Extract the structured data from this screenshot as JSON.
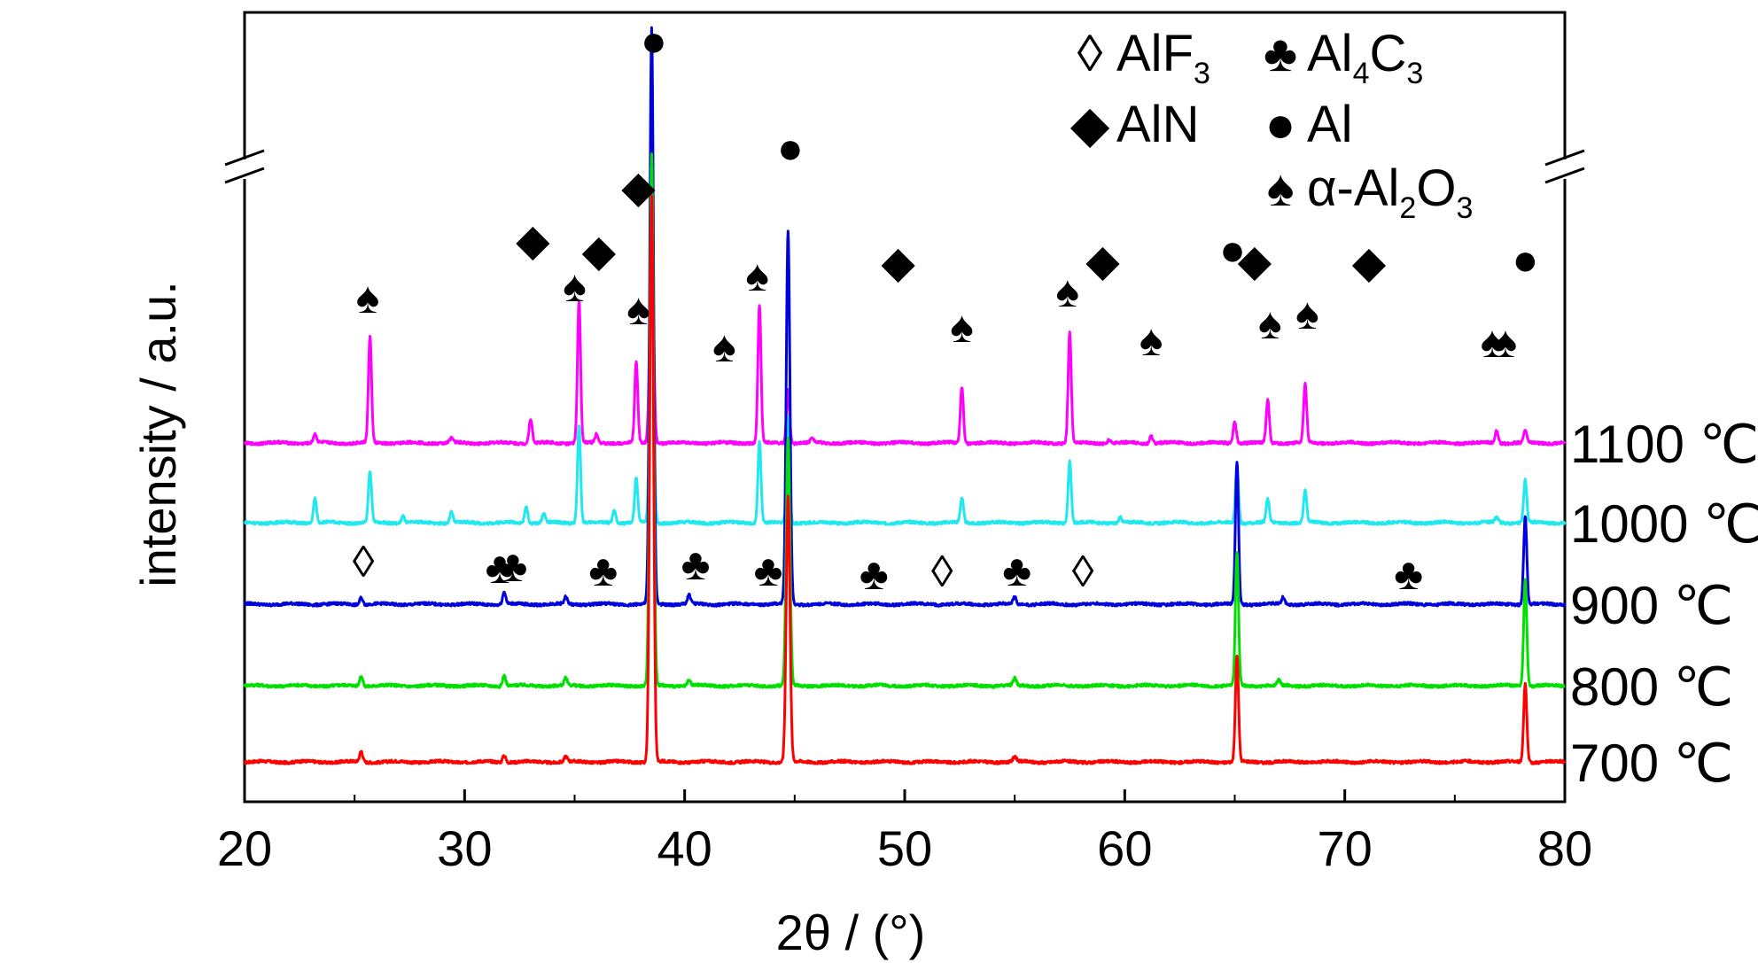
{
  "chart_data": {
    "type": "line",
    "xlabel": "2θ / (°)",
    "ylabel": "intensity / a.u.",
    "xlim": [
      20,
      80
    ],
    "xticks": [
      20,
      30,
      40,
      50,
      60,
      70,
      80
    ],
    "y_axis_break": true,
    "legend_position": "top-right",
    "legend": [
      {
        "symbol": "◊",
        "label": "AlF",
        "subscript": "3",
        "symbol_name": "open-diamond"
      },
      {
        "symbol": "♣",
        "label": "Al",
        "subscript": "4",
        "label2": "C",
        "subscript2": "3",
        "symbol_name": "club"
      },
      {
        "symbol": "◆",
        "label": "AlN",
        "subscript": "",
        "symbol_name": "filled-diamond"
      },
      {
        "symbol": "●",
        "label": "Al",
        "subscript": "",
        "symbol_name": "filled-circle"
      },
      {
        "symbol": "♠",
        "label": "α-Al",
        "subscript": "2",
        "label2": "O",
        "subscript2": "3",
        "symbol_name": "spade"
      }
    ],
    "series": [
      {
        "label": "700 ℃",
        "color": "#ff0000",
        "offset": 0,
        "peaks": [
          [
            25.3,
            12
          ],
          [
            31.8,
            8
          ],
          [
            34.6,
            6
          ],
          [
            38.5,
            640
          ],
          [
            44.7,
            300
          ],
          [
            55.0,
            6
          ],
          [
            65.1,
            120
          ],
          [
            78.2,
            90
          ]
        ]
      },
      {
        "label": "800 ℃",
        "color": "#00e000",
        "offset": 86,
        "peaks": [
          [
            25.3,
            12
          ],
          [
            31.8,
            12
          ],
          [
            34.6,
            8
          ],
          [
            38.5,
            600
          ],
          [
            40.2,
            6
          ],
          [
            44.7,
            280
          ],
          [
            55.0,
            8
          ],
          [
            65.1,
            150
          ],
          [
            67.0,
            6
          ],
          [
            78.2,
            120
          ]
        ]
      },
      {
        "label": "900 ℃",
        "color": "#0000dd",
        "offset": 178,
        "peaks": [
          [
            25.3,
            8
          ],
          [
            31.8,
            14
          ],
          [
            34.6,
            8
          ],
          [
            38.5,
            650
          ],
          [
            40.2,
            10
          ],
          [
            44.7,
            420
          ],
          [
            55.0,
            8
          ],
          [
            65.1,
            160
          ],
          [
            67.2,
            8
          ],
          [
            78.2,
            100
          ]
        ]
      },
      {
        "label": "1000 ℃",
        "color": "#20e8f0",
        "offset": 270,
        "peaks": [
          [
            23.2,
            28
          ],
          [
            25.7,
            58
          ],
          [
            27.2,
            8
          ],
          [
            29.4,
            12
          ],
          [
            32.8,
            18
          ],
          [
            33.6,
            10
          ],
          [
            35.2,
            110
          ],
          [
            36.8,
            14
          ],
          [
            37.8,
            50
          ],
          [
            38.5,
            300
          ],
          [
            43.4,
            92
          ],
          [
            44.7,
            120
          ],
          [
            52.6,
            28
          ],
          [
            57.5,
            70
          ],
          [
            59.8,
            6
          ],
          [
            65.1,
            66
          ],
          [
            66.5,
            26
          ],
          [
            68.2,
            36
          ],
          [
            76.9,
            6
          ],
          [
            78.2,
            48
          ]
        ]
      },
      {
        "label": "1100 ℃",
        "color": "#ff00ff",
        "offset": 360,
        "peaks": [
          [
            23.2,
            10
          ],
          [
            25.7,
            120
          ],
          [
            29.4,
            6
          ],
          [
            33.0,
            28
          ],
          [
            35.2,
            160
          ],
          [
            36.0,
            10
          ],
          [
            37.8,
            90
          ],
          [
            38.5,
            250
          ],
          [
            43.4,
            155
          ],
          [
            44.7,
            60
          ],
          [
            45.8,
            6
          ],
          [
            52.6,
            64
          ],
          [
            57.5,
            124
          ],
          [
            59.3,
            4
          ],
          [
            61.2,
            8
          ],
          [
            65.0,
            24
          ],
          [
            66.5,
            48
          ],
          [
            68.2,
            66
          ],
          [
            76.9,
            14
          ],
          [
            78.2,
            14
          ]
        ]
      }
    ],
    "markers": [
      {
        "symbol": "♣",
        "name": "club-marker",
        "points": [
          [
            31.6,
            640
          ],
          [
            32.2,
            638
          ],
          [
            36.3,
            643
          ],
          [
            40.5,
            636
          ],
          [
            43.8,
            643
          ],
          [
            48.6,
            647
          ],
          [
            55.1,
            643
          ],
          [
            72.9,
            647
          ]
        ]
      },
      {
        "symbol": "◊",
        "name": "open-diamond-marker",
        "points": [
          [
            25.4,
            633
          ],
          [
            51.7,
            644
          ],
          [
            58.1,
            644
          ]
        ]
      },
      {
        "symbol": "◆",
        "name": "filled-diamond-marker",
        "points": [
          [
            33.1,
            270
          ],
          [
            36.1,
            282
          ],
          [
            37.9,
            210
          ],
          [
            49.7,
            295
          ],
          [
            59.0,
            293
          ],
          [
            65.9,
            293
          ],
          [
            71.1,
            295
          ]
        ]
      },
      {
        "symbol": "●",
        "name": "circle-marker",
        "points": [
          [
            38.6,
            45
          ],
          [
            44.8,
            166
          ],
          [
            64.9,
            281
          ],
          [
            78.2,
            292
          ]
        ]
      },
      {
        "symbol": "♠",
        "name": "spade-marker",
        "points": [
          [
            25.6,
            335
          ],
          [
            35.0,
            322
          ],
          [
            37.9,
            348
          ],
          [
            41.8,
            390
          ],
          [
            43.3,
            310
          ],
          [
            52.6,
            368
          ],
          [
            57.4,
            328
          ],
          [
            61.2,
            383
          ],
          [
            66.6,
            364
          ],
          [
            68.3,
            353
          ],
          [
            76.7,
            385
          ],
          [
            77.3,
            385
          ]
        ]
      }
    ]
  }
}
